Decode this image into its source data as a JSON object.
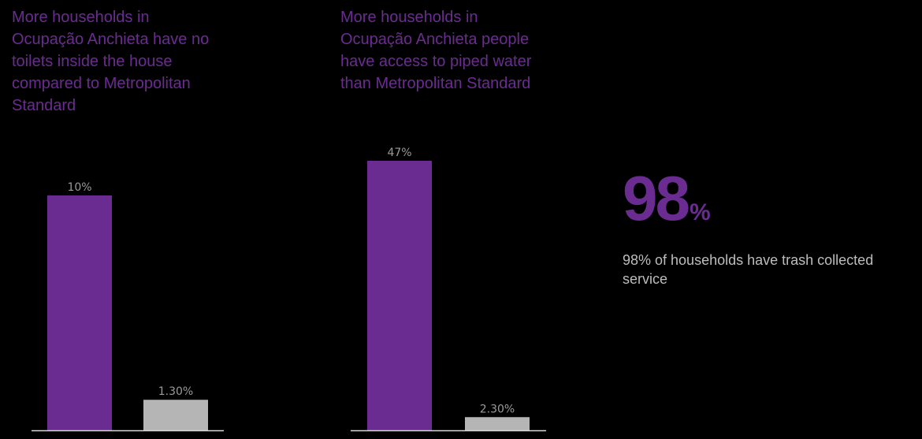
{
  "colors": {
    "background": "#000000",
    "primary": "#6b2c91",
    "secondary": "#b5b5b5",
    "baseline": "#d8d8d8",
    "label": "#9a9a9a",
    "caption": "#bdbdbd"
  },
  "chart_data": [
    {
      "type": "bar",
      "title": "More households in Ocupação Anchieta have no toilets inside the house compared to Metropolitan Standard",
      "categories": [
        "",
        ""
      ],
      "values": [
        10,
        1.3
      ],
      "labels": [
        "10%",
        "1.30%"
      ],
      "ylim": [
        0,
        13.2
      ],
      "grid": false,
      "legend": "none"
    },
    {
      "type": "bar",
      "title": "More households in Ocupação Anchieta people have access to piped water than Metropolitan Standard",
      "categories": [
        "",
        ""
      ],
      "values": [
        47,
        2.3
      ],
      "labels": [
        "47%",
        "2.30%"
      ],
      "ylim": [
        0,
        47
      ],
      "grid": false,
      "legend": "none"
    }
  ],
  "stat": {
    "number": "98",
    "unit": "%",
    "caption": "98% of households have trash collected service"
  }
}
